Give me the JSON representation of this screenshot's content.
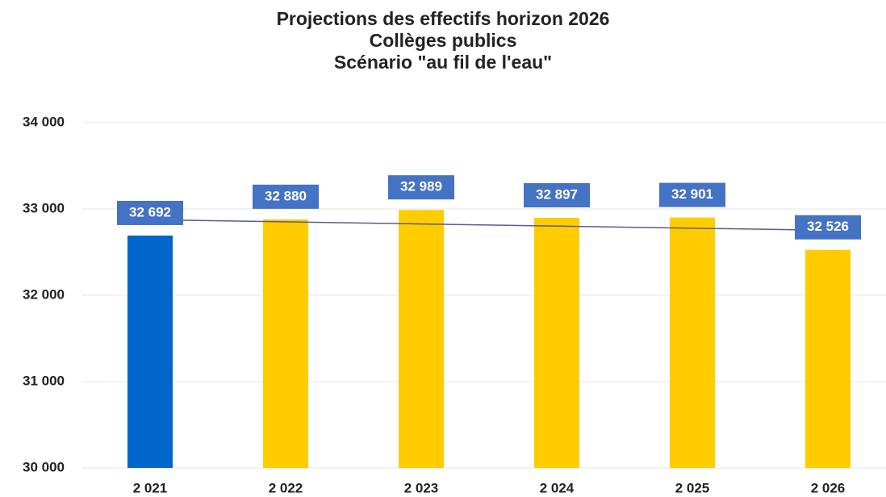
{
  "chart_data": {
    "type": "bar",
    "title": [
      "Projections des effectifs horizon 2026",
      "Collèges publics",
      "Scénario \"au fil de l'eau\""
    ],
    "categories": [
      "2 021",
      "2 022",
      "2 023",
      "2 024",
      "2 025",
      "2 026"
    ],
    "values": [
      32692,
      32880,
      32989,
      32897,
      32901,
      32526
    ],
    "value_labels": [
      "32 692",
      "32 880",
      "32 989",
      "32 897",
      "32 901",
      "32 526"
    ],
    "colors": [
      "#0066cc",
      "#ffcc00",
      "#ffcc00",
      "#ffcc00",
      "#ffcc00",
      "#ffcc00"
    ],
    "label_color": "#4472c4",
    "trendline": true,
    "trendline_color": "#5b5b8f",
    "ylim": [
      30000,
      34000
    ],
    "yticks": [
      {
        "value": 30000,
        "label": "30 000"
      },
      {
        "value": 31000,
        "label": "31 000"
      },
      {
        "value": 32000,
        "label": "32 000"
      },
      {
        "value": 33000,
        "label": "33 000"
      },
      {
        "value": 34000,
        "label": "34 000"
      }
    ],
    "grid": true
  }
}
